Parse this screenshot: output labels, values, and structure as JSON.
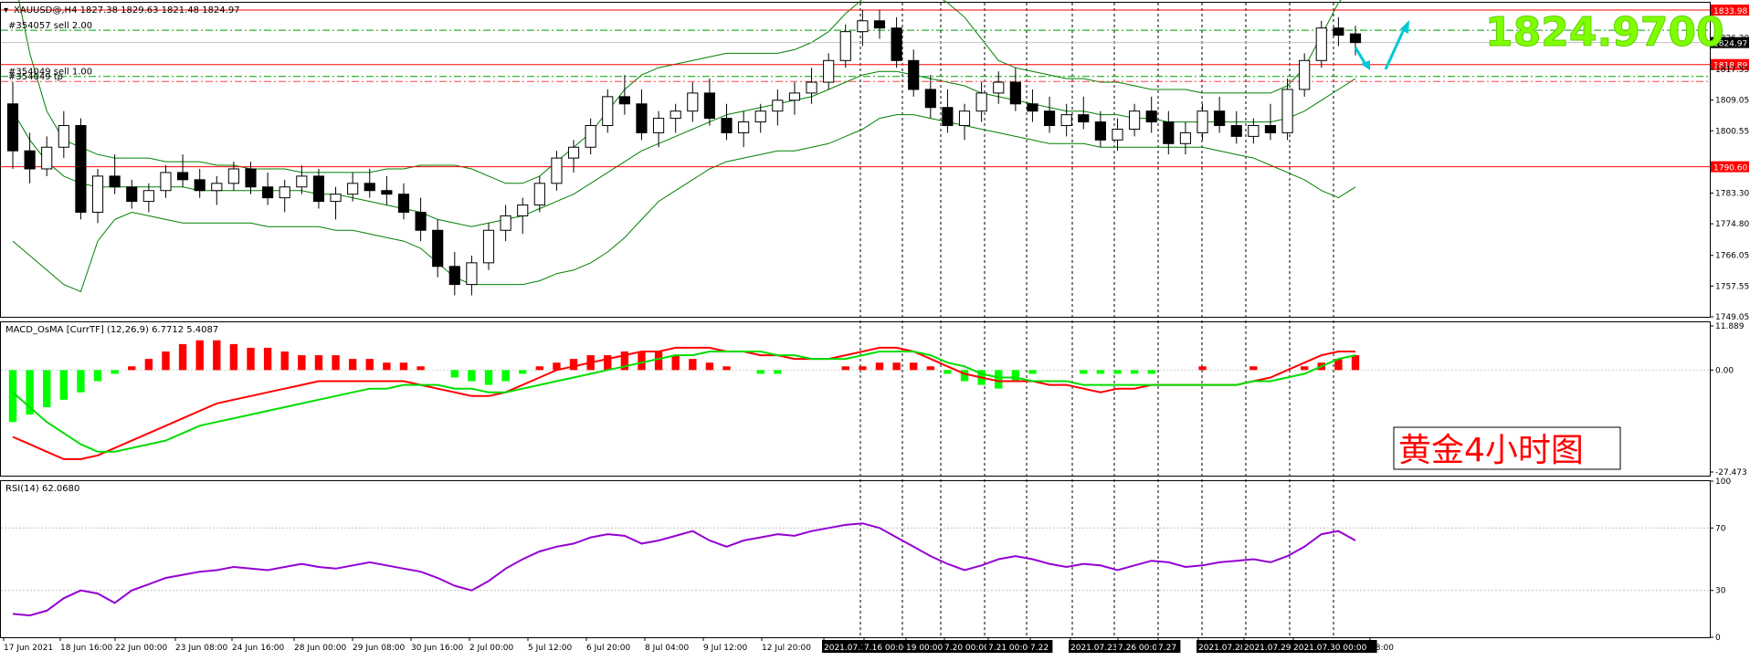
{
  "colors": {
    "background": "#ffffff",
    "candle": "#000000",
    "bollinger": "#008000",
    "level_line": "#ff0000",
    "order_line": "#00a000",
    "macd_pos": "#ff0000",
    "macd_neg": "#00ff00",
    "macd_main": "#ff0000",
    "macd_signal": "#00dd00",
    "rsi": "#9400d3",
    "arrow": "#00c8d7",
    "price_tag": "#ff0000",
    "big_price": "#7fff00",
    "title_text": "#ff0000",
    "axis_text": "#000000"
  },
  "main": {
    "header": "XAUUSD@,H4  1827.38 1829.63 1821.48 1824.97",
    "big_price": "1824.9700",
    "orders": [
      {
        "label": "#354057 sell 2.00",
        "price": 1828.4
      },
      {
        "label": "#354049 sell 1.00",
        "price": 1815.6
      },
      {
        "label": "#354049 tp",
        "price": 1814.2
      }
    ],
    "levels": [
      {
        "price": 1833.98,
        "label": "1833.98"
      },
      {
        "price": 1818.89,
        "label": "1818.89"
      },
      {
        "price": 1790.6,
        "label": "1790.60"
      }
    ],
    "current_price": {
      "price": 1824.97,
      "label": "1824.97"
    },
    "y_ticks": [
      {
        "value": 1826.3,
        "label": "1826.30"
      },
      {
        "value": 1817.55,
        "label": "1817.55"
      },
      {
        "value": 1809.05,
        "label": "1809.05"
      },
      {
        "value": 1800.55,
        "label": "1800.55"
      },
      {
        "value": 1783.3,
        "label": "1783.30"
      },
      {
        "value": 1774.8,
        "label": "1774.80"
      },
      {
        "value": 1766.05,
        "label": "1766.05"
      },
      {
        "value": 1757.55,
        "label": "1757.55"
      },
      {
        "value": 1749.05,
        "label": "1749.05"
      }
    ]
  },
  "macd": {
    "header": "MACD_OsMA [CurrTF] (12,26,9) 6.7712 5.4087",
    "y_ticks": [
      {
        "value": 11.889,
        "label": "11.889"
      },
      {
        "value": 0,
        "label": "0.00"
      },
      {
        "value": -27.473,
        "label": "-27.473"
      }
    ]
  },
  "rsi": {
    "header": "RSI(14) 62.0680",
    "y_ticks": [
      {
        "value": 100,
        "label": "100"
      },
      {
        "value": 70,
        "label": "70"
      },
      {
        "value": 30,
        "label": "30"
      },
      {
        "value": 0,
        "label": "0"
      }
    ]
  },
  "annotation": {
    "text": "黄金4小时图"
  },
  "x_axis": {
    "labels": [
      "17 Jun 2021",
      "18 Jun 16:00",
      "22 Jun 00:00",
      "23 Jun 08:00",
      "24 Jun 16:00",
      "28 Jun 00:00",
      "29 Jun 08:00",
      "30 Jun 16:00",
      "2 Jul 00:00",
      "5 Jul 12:00",
      "6 Jul 20:00",
      "8 Jul 04:00",
      "9 Jul 12:00",
      "12 Jul 20:00",
      "2021.07.15 00:00",
      "7.16 00:00",
      "19 00:00",
      "7.20 00:00",
      "7.21 00:00",
      "7.22",
      "2021.07.23 00:00",
      "7.26 00:00",
      "7.27",
      "2021.07.28",
      "2021.07.29",
      "2021.07.30 00:00",
      "08:00"
    ]
  },
  "chart_data": {
    "type": "candlestick",
    "symbol": "XAUUSD@",
    "timeframe": "H4",
    "price_range": [
      1749.05,
      1836.0
    ],
    "candles": [
      {
        "o": 1808,
        "h": 1814,
        "l": 1790,
        "c": 1795
      },
      {
        "o": 1795,
        "h": 1800,
        "l": 1786,
        "c": 1790
      },
      {
        "o": 1790,
        "h": 1799,
        "l": 1788,
        "c": 1796
      },
      {
        "o": 1796,
        "h": 1806,
        "l": 1793,
        "c": 1802
      },
      {
        "o": 1802,
        "h": 1804,
        "l": 1776,
        "c": 1778
      },
      {
        "o": 1778,
        "h": 1790,
        "l": 1775,
        "c": 1788
      },
      {
        "o": 1788,
        "h": 1794,
        "l": 1783,
        "c": 1785
      },
      {
        "o": 1785,
        "h": 1787,
        "l": 1779,
        "c": 1781
      },
      {
        "o": 1781,
        "h": 1786,
        "l": 1778,
        "c": 1784
      },
      {
        "o": 1784,
        "h": 1791,
        "l": 1782,
        "c": 1789
      },
      {
        "o": 1789,
        "h": 1794,
        "l": 1785,
        "c": 1787
      },
      {
        "o": 1787,
        "h": 1790,
        "l": 1782,
        "c": 1784
      },
      {
        "o": 1784,
        "h": 1788,
        "l": 1780,
        "c": 1786
      },
      {
        "o": 1786,
        "h": 1792,
        "l": 1784,
        "c": 1790
      },
      {
        "o": 1790,
        "h": 1792,
        "l": 1783,
        "c": 1785
      },
      {
        "o": 1785,
        "h": 1789,
        "l": 1780,
        "c": 1782
      },
      {
        "o": 1782,
        "h": 1787,
        "l": 1778,
        "c": 1785
      },
      {
        "o": 1785,
        "h": 1791,
        "l": 1783,
        "c": 1788
      },
      {
        "o": 1788,
        "h": 1790,
        "l": 1779,
        "c": 1781
      },
      {
        "o": 1781,
        "h": 1785,
        "l": 1776,
        "c": 1783
      },
      {
        "o": 1783,
        "h": 1789,
        "l": 1781,
        "c": 1786
      },
      {
        "o": 1786,
        "h": 1790,
        "l": 1782,
        "c": 1784
      },
      {
        "o": 1784,
        "h": 1788,
        "l": 1780,
        "c": 1783
      },
      {
        "o": 1783,
        "h": 1786,
        "l": 1776,
        "c": 1778
      },
      {
        "o": 1778,
        "h": 1782,
        "l": 1770,
        "c": 1773
      },
      {
        "o": 1773,
        "h": 1776,
        "l": 1760,
        "c": 1763
      },
      {
        "o": 1763,
        "h": 1767,
        "l": 1755,
        "c": 1758
      },
      {
        "o": 1758,
        "h": 1766,
        "l": 1755,
        "c": 1764
      },
      {
        "o": 1764,
        "h": 1775,
        "l": 1762,
        "c": 1773
      },
      {
        "o": 1773,
        "h": 1780,
        "l": 1770,
        "c": 1777
      },
      {
        "o": 1777,
        "h": 1782,
        "l": 1772,
        "c": 1780
      },
      {
        "o": 1780,
        "h": 1788,
        "l": 1778,
        "c": 1786
      },
      {
        "o": 1786,
        "h": 1795,
        "l": 1784,
        "c": 1793
      },
      {
        "o": 1793,
        "h": 1798,
        "l": 1789,
        "c": 1796
      },
      {
        "o": 1796,
        "h": 1804,
        "l": 1794,
        "c": 1802
      },
      {
        "o": 1802,
        "h": 1812,
        "l": 1800,
        "c": 1810
      },
      {
        "o": 1810,
        "h": 1816,
        "l": 1805,
        "c": 1808
      },
      {
        "o": 1808,
        "h": 1812,
        "l": 1798,
        "c": 1800
      },
      {
        "o": 1800,
        "h": 1806,
        "l": 1796,
        "c": 1804
      },
      {
        "o": 1804,
        "h": 1808,
        "l": 1800,
        "c": 1806
      },
      {
        "o": 1806,
        "h": 1814,
        "l": 1803,
        "c": 1811
      },
      {
        "o": 1811,
        "h": 1815,
        "l": 1802,
        "c": 1804
      },
      {
        "o": 1804,
        "h": 1808,
        "l": 1798,
        "c": 1800
      },
      {
        "o": 1800,
        "h": 1806,
        "l": 1796,
        "c": 1803
      },
      {
        "o": 1803,
        "h": 1808,
        "l": 1800,
        "c": 1806
      },
      {
        "o": 1806,
        "h": 1812,
        "l": 1802,
        "c": 1809
      },
      {
        "o": 1809,
        "h": 1814,
        "l": 1805,
        "c": 1811
      },
      {
        "o": 1811,
        "h": 1818,
        "l": 1808,
        "c": 1814
      },
      {
        "o": 1814,
        "h": 1822,
        "l": 1812,
        "c": 1820
      },
      {
        "o": 1820,
        "h": 1830,
        "l": 1818,
        "c": 1828
      },
      {
        "o": 1828,
        "h": 1834,
        "l": 1824,
        "c": 1831
      },
      {
        "o": 1831,
        "h": 1834,
        "l": 1826,
        "c": 1829
      },
      {
        "o": 1829,
        "h": 1832,
        "l": 1818,
        "c": 1820
      },
      {
        "o": 1820,
        "h": 1823,
        "l": 1810,
        "c": 1812
      },
      {
        "o": 1812,
        "h": 1816,
        "l": 1804,
        "c": 1807
      },
      {
        "o": 1807,
        "h": 1812,
        "l": 1800,
        "c": 1802
      },
      {
        "o": 1802,
        "h": 1808,
        "l": 1798,
        "c": 1806
      },
      {
        "o": 1806,
        "h": 1814,
        "l": 1803,
        "c": 1811
      },
      {
        "o": 1811,
        "h": 1817,
        "l": 1808,
        "c": 1814
      },
      {
        "o": 1814,
        "h": 1818,
        "l": 1806,
        "c": 1808
      },
      {
        "o": 1808,
        "h": 1812,
        "l": 1803,
        "c": 1806
      },
      {
        "o": 1806,
        "h": 1810,
        "l": 1800,
        "c": 1802
      },
      {
        "o": 1802,
        "h": 1808,
        "l": 1799,
        "c": 1805
      },
      {
        "o": 1805,
        "h": 1810,
        "l": 1801,
        "c": 1803
      },
      {
        "o": 1803,
        "h": 1806,
        "l": 1796,
        "c": 1798
      },
      {
        "o": 1798,
        "h": 1804,
        "l": 1795,
        "c": 1801
      },
      {
        "o": 1801,
        "h": 1808,
        "l": 1799,
        "c": 1806
      },
      {
        "o": 1806,
        "h": 1810,
        "l": 1800,
        "c": 1803
      },
      {
        "o": 1803,
        "h": 1806,
        "l": 1794,
        "c": 1797
      },
      {
        "o": 1797,
        "h": 1803,
        "l": 1794,
        "c": 1800
      },
      {
        "o": 1800,
        "h": 1808,
        "l": 1798,
        "c": 1806
      },
      {
        "o": 1806,
        "h": 1810,
        "l": 1800,
        "c": 1802
      },
      {
        "o": 1802,
        "h": 1806,
        "l": 1797,
        "c": 1799
      },
      {
        "o": 1799,
        "h": 1804,
        "l": 1797,
        "c": 1802
      },
      {
        "o": 1802,
        "h": 1808,
        "l": 1798,
        "c": 1800
      },
      {
        "o": 1800,
        "h": 1815,
        "l": 1798,
        "c": 1812
      },
      {
        "o": 1812,
        "h": 1822,
        "l": 1810,
        "c": 1820
      },
      {
        "o": 1820,
        "h": 1831,
        "l": 1818,
        "c": 1829
      },
      {
        "o": 1829,
        "h": 1832,
        "l": 1824,
        "c": 1827
      },
      {
        "o": 1827.38,
        "h": 1829.63,
        "l": 1821.48,
        "c": 1824.97
      }
    ],
    "bollinger": {
      "upper": [
        1845,
        1822,
        1806,
        1798,
        1796,
        1794,
        1793,
        1793,
        1793,
        1792,
        1792,
        1792,
        1791,
        1791,
        1790,
        1790,
        1790,
        1789,
        1789,
        1789,
        1789,
        1789,
        1790,
        1790,
        1791,
        1791,
        1791,
        1790,
        1788,
        1786,
        1786,
        1788,
        1792,
        1796,
        1800,
        1806,
        1812,
        1816,
        1818,
        1819,
        1820,
        1821,
        1822,
        1822,
        1822,
        1822,
        1823,
        1825,
        1828,
        1833,
        1837,
        1840,
        1841,
        1841,
        1839,
        1836,
        1832,
        1826,
        1820,
        1818,
        1817,
        1816,
        1815,
        1815,
        1814,
        1814,
        1813,
        1812,
        1812,
        1812,
        1811,
        1811,
        1811,
        1811,
        1811,
        1813,
        1818,
        1827,
        1836,
        1841
      ],
      "lower": [
        1770,
        1766,
        1762,
        1758,
        1756,
        1770,
        1776,
        1778,
        1777,
        1776,
        1775,
        1775,
        1775,
        1775,
        1775,
        1774,
        1774,
        1774,
        1774,
        1773,
        1773,
        1772,
        1771,
        1770,
        1768,
        1764,
        1760,
        1758,
        1758,
        1758,
        1758,
        1759,
        1761,
        1762,
        1764,
        1767,
        1771,
        1776,
        1781,
        1784,
        1787,
        1790,
        1792,
        1793,
        1794,
        1795,
        1795,
        1796,
        1797,
        1799,
        1801,
        1804,
        1805,
        1805,
        1804,
        1803,
        1802,
        1801,
        1800,
        1799,
        1798,
        1797,
        1797,
        1797,
        1796,
        1796,
        1796,
        1796,
        1796,
        1796,
        1796,
        1795,
        1794,
        1793,
        1791,
        1789,
        1787,
        1784,
        1782,
        1785
      ],
      "middle": [
        1806,
        1798,
        1792,
        1788,
        1786,
        1785,
        1785,
        1785,
        1785,
        1785,
        1785,
        1784,
        1784,
        1784,
        1784,
        1784,
        1784,
        1784,
        1783,
        1783,
        1782,
        1781,
        1780,
        1779,
        1778,
        1776,
        1775,
        1774,
        1775,
        1776,
        1777,
        1779,
        1781,
        1783,
        1786,
        1789,
        1792,
        1795,
        1797,
        1799,
        1801,
        1803,
        1805,
        1806,
        1807,
        1808,
        1809,
        1810,
        1812,
        1814,
        1816,
        1817,
        1817,
        1816,
        1815,
        1814,
        1813,
        1811,
        1810,
        1809,
        1808,
        1807,
        1806,
        1806,
        1805,
        1805,
        1804,
        1804,
        1803,
        1803,
        1803,
        1803,
        1803,
        1803,
        1803,
        1804,
        1806,
        1809,
        1812,
        1815
      ]
    },
    "macd": {
      "range": [
        -27.473,
        11.889
      ],
      "histogram": [
        -14,
        -12,
        -10,
        -8,
        -6,
        -3,
        -1,
        1,
        3,
        5,
        7,
        8,
        8,
        7,
        6,
        6,
        5,
        4,
        4,
        4,
        3,
        3,
        2,
        2,
        1,
        0,
        -2,
        -3,
        -4,
        -3,
        -1,
        1,
        2,
        3,
        4,
        4,
        5,
        5,
        5,
        4,
        3,
        2,
        1,
        0,
        -1,
        -1,
        0,
        0,
        0,
        1,
        1,
        2,
        2,
        2,
        1,
        -1,
        -3,
        -4,
        -5,
        -3,
        -1,
        0,
        0,
        -1,
        -1,
        -1,
        -1,
        -1,
        0,
        0,
        1,
        0,
        0,
        1,
        0,
        0,
        1,
        2,
        3,
        4
      ],
      "main": [
        -18,
        -20,
        -22,
        -24,
        -24,
        -23,
        -21,
        -19,
        -17,
        -15,
        -13,
        -11,
        -9,
        -8,
        -7,
        -6,
        -5,
        -4,
        -3,
        -3,
        -3,
        -3,
        -3,
        -3,
        -4,
        -5,
        -6,
        -7,
        -7,
        -6,
        -4,
        -2,
        0,
        1,
        2,
        3,
        4,
        5,
        5,
        6,
        6,
        6,
        5,
        5,
        4,
        4,
        3,
        3,
        3,
        4,
        5,
        6,
        6,
        5,
        3,
        1,
        -1,
        -2,
        -3,
        -3,
        -3,
        -4,
        -4,
        -5,
        -6,
        -5,
        -5,
        -4,
        -4,
        -4,
        -4,
        -4,
        -4,
        -3,
        -2,
        0,
        2,
        4,
        5,
        5
      ],
      "signal": [
        -6,
        -10,
        -14,
        -17,
        -20,
        -22,
        -22,
        -21,
        -20,
        -19,
        -17,
        -15,
        -14,
        -13,
        -12,
        -11,
        -10,
        -9,
        -8,
        -7,
        -6,
        -5,
        -5,
        -4,
        -4,
        -4,
        -5,
        -5,
        -6,
        -6,
        -5,
        -4,
        -3,
        -2,
        -1,
        0,
        1,
        2,
        3,
        4,
        4,
        5,
        5,
        5,
        5,
        4,
        4,
        3,
        3,
        3,
        4,
        5,
        5,
        5,
        4,
        2,
        1,
        -1,
        -2,
        -2,
        -3,
        -3,
        -3,
        -4,
        -4,
        -4,
        -4,
        -4,
        -4,
        -4,
        -4,
        -4,
        -4,
        -3,
        -3,
        -2,
        -1,
        1,
        3,
        4
      ]
    },
    "rsi": {
      "range": [
        0,
        100
      ],
      "values": [
        15,
        14,
        17,
        25,
        30,
        28,
        22,
        30,
        34,
        38,
        40,
        42,
        43,
        45,
        44,
        43,
        45,
        47,
        45,
        44,
        46,
        48,
        46,
        44,
        42,
        38,
        33,
        30,
        36,
        44,
        50,
        55,
        58,
        60,
        64,
        66,
        65,
        60,
        62,
        65,
        68,
        62,
        58,
        62,
        64,
        66,
        65,
        68,
        70,
        72,
        73,
        70,
        64,
        58,
        52,
        47,
        43,
        46,
        50,
        52,
        50,
        47,
        45,
        47,
        46,
        43,
        46,
        49,
        48,
        45,
        46,
        48,
        49,
        50,
        48,
        52,
        58,
        66,
        68,
        62
      ]
    }
  }
}
